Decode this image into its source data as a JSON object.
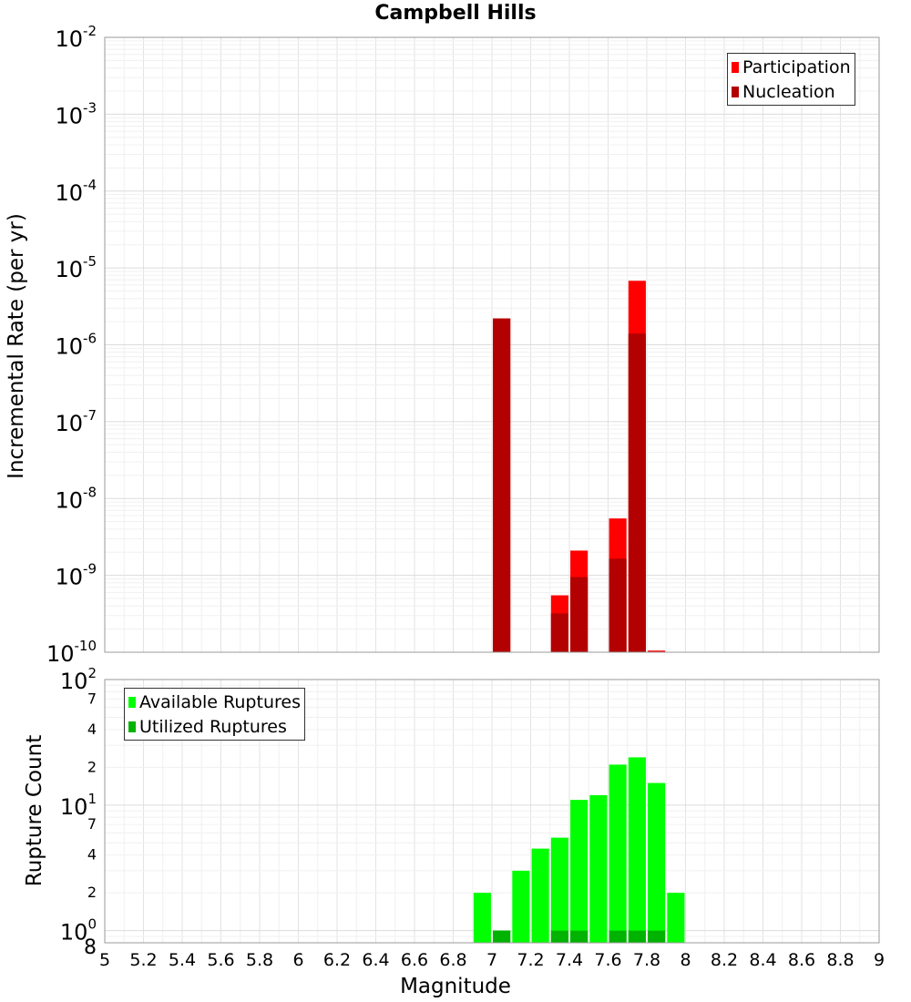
{
  "chart_data": [
    {
      "type": "bar",
      "title": "Campbell Hills",
      "xlabel": "Magnitude",
      "ylabel": "Incremental Rate (per yr)",
      "yscale": "log",
      "ylim": [
        1e-10,
        0.01
      ],
      "xlim": [
        5,
        9
      ],
      "y_ticks": [
        -10,
        -9,
        -8,
        -7,
        -6,
        -5,
        -4,
        -3,
        -2
      ],
      "bar_width": 0.09,
      "legend_position": "top-right",
      "grid": true,
      "series": [
        {
          "name": "Participation",
          "color": "#ff0000",
          "x": [
            7.05,
            7.35,
            7.45,
            7.65,
            7.75,
            7.85
          ],
          "values": [
            2.2e-06,
            5.5e-10,
            2.1e-09,
            5.5e-09,
            6.8e-06,
            1.05e-10
          ]
        },
        {
          "name": "Nucleation",
          "color": "#b30000",
          "x": [
            7.05,
            7.35,
            7.45,
            7.65,
            7.75
          ],
          "values": [
            2.2e-06,
            3.2e-10,
            9.5e-10,
            1.65e-09,
            1.4e-06
          ]
        }
      ]
    },
    {
      "type": "bar",
      "xlabel": "Magnitude",
      "ylabel": "Rupture Count",
      "yscale": "log",
      "ylim": [
        0.8,
        100
      ],
      "xlim": [
        5,
        9
      ],
      "bar_width": 0.09,
      "legend_position": "top-left",
      "grid": true,
      "series": [
        {
          "name": "Available Ruptures",
          "color": "#00ff00",
          "x": [
            6.95,
            7.05,
            7.15,
            7.25,
            7.35,
            7.45,
            7.55,
            7.65,
            7.75,
            7.85,
            7.95
          ],
          "values": [
            2,
            1,
            3,
            4.5,
            5.5,
            11,
            12,
            21,
            24,
            15,
            2
          ]
        },
        {
          "name": "Utilized Ruptures",
          "color": "#00b300",
          "x": [
            7.05,
            7.35,
            7.45,
            7.65,
            7.75,
            7.85
          ],
          "values": [
            1,
            1,
            1,
            1,
            1,
            1
          ]
        }
      ]
    }
  ],
  "x_tick_labels": [
    "5",
    "5.2",
    "5.4",
    "5.6",
    "5.8",
    "6",
    "6.2",
    "6.4",
    "6.6",
    "6.8",
    "7",
    "7.2",
    "7.4",
    "7.6",
    "7.8",
    "8",
    "8.2",
    "8.4",
    "8.6",
    "8.8",
    "9"
  ],
  "bottom_y_ticks": {
    "major_labels": [
      {
        "value": 100,
        "base": "10",
        "exp": "2"
      },
      {
        "value": 10,
        "base": "10",
        "exp": "1"
      },
      {
        "value": 1,
        "base": "10",
        "exp": "0"
      }
    ],
    "minor_labels": [
      {
        "value": 70,
        "label": "7"
      },
      {
        "value": 40,
        "label": "4"
      },
      {
        "value": 20,
        "label": "2"
      },
      {
        "value": 7,
        "label": "7"
      },
      {
        "value": 4,
        "label": "4"
      },
      {
        "value": 2,
        "label": "2"
      },
      {
        "value": 0.8,
        "label": "8"
      }
    ]
  },
  "top_y_tick_base": "10"
}
